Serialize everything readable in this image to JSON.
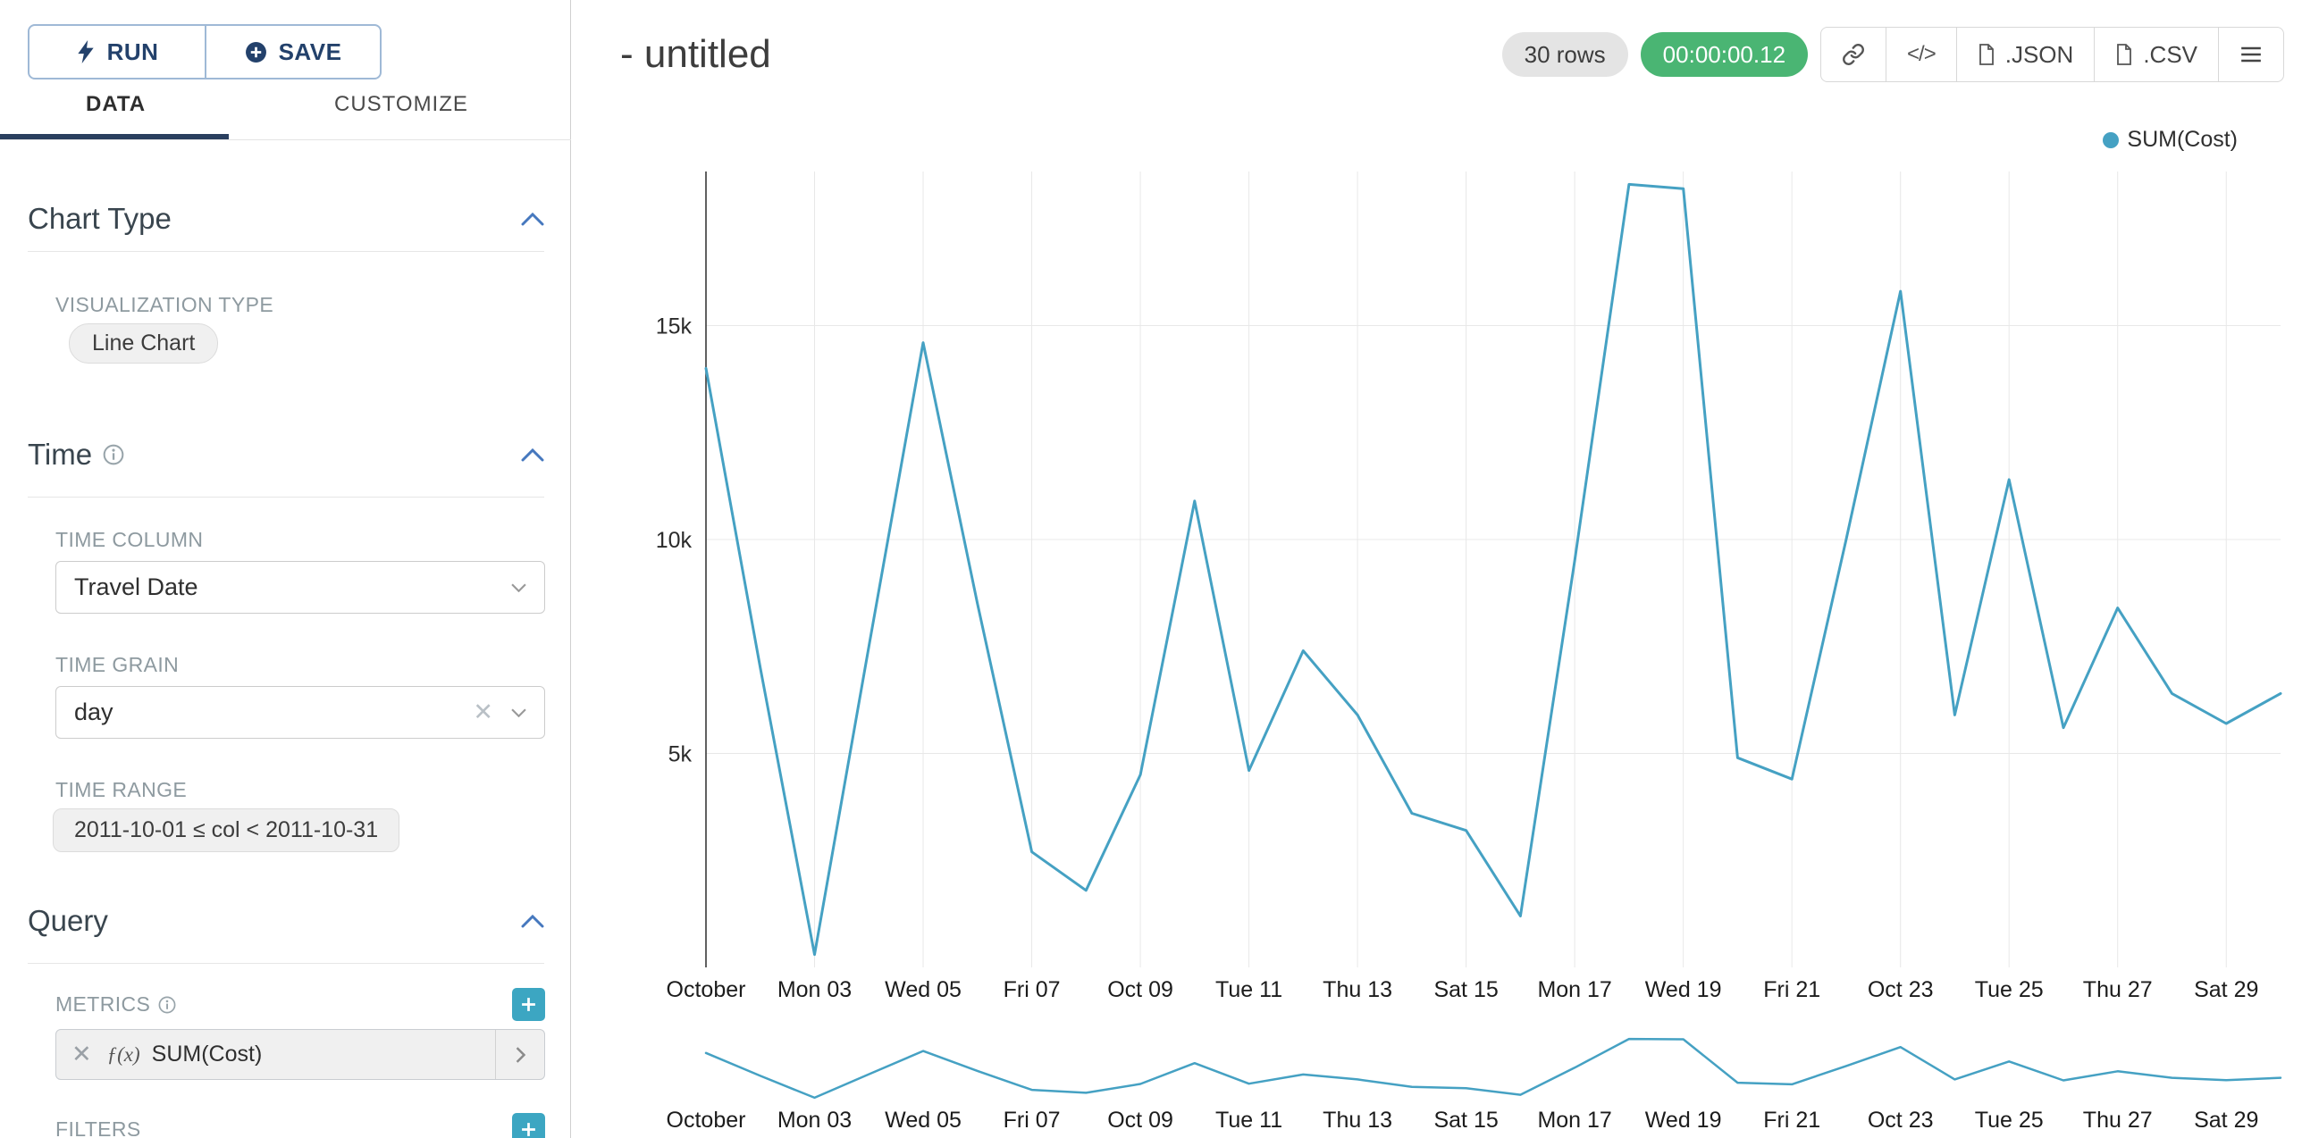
{
  "toolbar": {
    "run_label": "RUN",
    "save_label": "SAVE"
  },
  "tabs": {
    "data_label": "DATA",
    "customize_label": "CUSTOMIZE"
  },
  "icons": {
    "clear": "✕"
  },
  "panel": {
    "chart_type": {
      "title": "Chart Type",
      "visualization_type_label": "VISUALIZATION TYPE",
      "visualization_type_value": "Line Chart"
    },
    "time": {
      "title": "Time",
      "time_column_label": "TIME COLUMN",
      "time_column_value": "Travel Date",
      "time_grain_label": "TIME GRAIN",
      "time_grain_value": "day",
      "time_range_label": "TIME RANGE",
      "time_range_value": "2011-10-01 ≤ col < 2011-10-31"
    },
    "query": {
      "title": "Query",
      "metrics_label": "METRICS",
      "metric_prefix": "ƒ(x)",
      "metric_value": "SUM(Cost)",
      "filters_label": "FILTERS"
    }
  },
  "header": {
    "title": "- untitled",
    "rows_badge": "30 rows",
    "timer_badge": "00:00:00.12",
    "timer_color": "#4AB573",
    "code_button_label": "</>",
    "json_button_label": ".JSON",
    "csv_button_label": ".CSV"
  },
  "legend": {
    "label": "SUM(Cost)",
    "color": "#45A1C3"
  },
  "chart_data": {
    "type": "line",
    "title": "",
    "xlabel": "",
    "ylabel": "",
    "grid": true,
    "legend_position": "top-right",
    "has_range_brush_preview": true,
    "ylim": [
      0,
      18600
    ],
    "y_ticks": [
      {
        "value": 5000,
        "label": "5k"
      },
      {
        "value": 10000,
        "label": "10k"
      },
      {
        "value": 15000,
        "label": "15k"
      }
    ],
    "x": [
      "2011-10-01",
      "2011-10-02",
      "2011-10-03",
      "2011-10-04",
      "2011-10-05",
      "2011-10-06",
      "2011-10-07",
      "2011-10-08",
      "2011-10-09",
      "2011-10-10",
      "2011-10-11",
      "2011-10-12",
      "2011-10-13",
      "2011-10-14",
      "2011-10-15",
      "2011-10-16",
      "2011-10-17",
      "2011-10-18",
      "2011-10-19",
      "2011-10-20",
      "2011-10-21",
      "2011-10-22",
      "2011-10-23",
      "2011-10-24",
      "2011-10-25",
      "2011-10-26",
      "2011-10-27",
      "2011-10-28",
      "2011-10-29",
      "2011-10-30"
    ],
    "x_tick_positions": [
      0,
      2,
      4,
      6,
      8,
      10,
      12,
      14,
      16,
      18,
      20,
      22,
      24,
      26,
      28
    ],
    "x_tick_labels": [
      "October",
      "Mon 03",
      "Wed 05",
      "Fri 07",
      "Oct 09",
      "Tue 11",
      "Thu 13",
      "Sat 15",
      "Mon 17",
      "Wed 19",
      "Fri 21",
      "Oct 23",
      "Tue 25",
      "Thu 27",
      "Sat 29"
    ],
    "series": [
      {
        "name": "SUM(Cost)",
        "color": "#45A1C3",
        "values": [
          14000,
          7000,
          300,
          7500,
          14600,
          8500,
          2700,
          1800,
          4500,
          10900,
          4600,
          7400,
          5900,
          3600,
          3200,
          1200,
          9500,
          18300,
          18200,
          4900,
          4400,
          10000,
          15800,
          5900,
          11400,
          5600,
          8400,
          6400,
          5700,
          6400
        ]
      }
    ]
  }
}
